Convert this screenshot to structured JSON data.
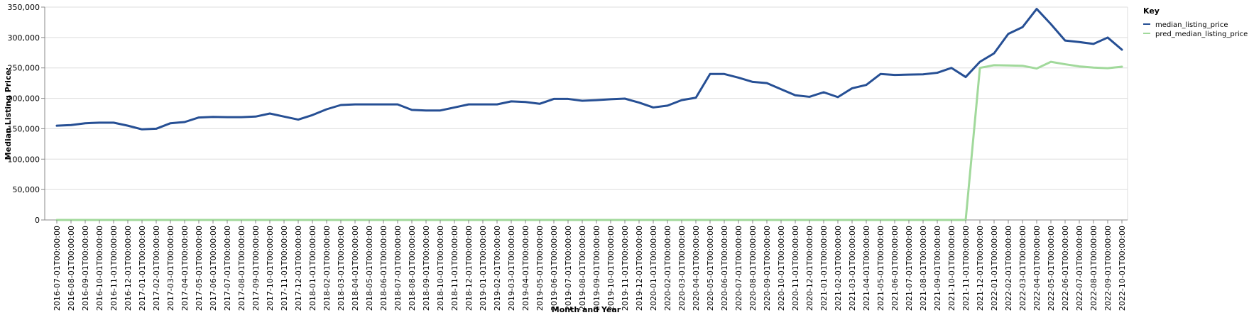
{
  "chart_data": {
    "type": "line",
    "xlabel": "Month and Year",
    "ylabel": "Median Listing Price:",
    "ylim": [
      0,
      350000
    ],
    "yticks": [
      "0",
      "50,000",
      "100,000",
      "150,000",
      "200,000",
      "250,000",
      "300,000",
      "350,000"
    ],
    "ytick_values": [
      0,
      50000,
      100000,
      150000,
      200000,
      250000,
      300000,
      350000
    ],
    "grid": true,
    "legend_title": "Key",
    "legend_position": "top-right",
    "x": [
      "2016-07-01T00:00:00",
      "2016-08-01T00:00:00",
      "2016-09-01T00:00:00",
      "2016-10-01T00:00:00",
      "2016-11-01T00:00:00",
      "2016-12-01T00:00:00",
      "2017-01-01T00:00:00",
      "2017-02-01T00:00:00",
      "2017-03-01T00:00:00",
      "2017-04-01T00:00:00",
      "2017-05-01T00:00:00",
      "2017-06-01T00:00:00",
      "2017-07-01T00:00:00",
      "2017-08-01T00:00:00",
      "2017-09-01T00:00:00",
      "2017-10-01T00:00:00",
      "2017-11-01T00:00:00",
      "2017-12-01T00:00:00",
      "2018-01-01T00:00:00",
      "2018-02-01T00:00:00",
      "2018-03-01T00:00:00",
      "2018-04-01T00:00:00",
      "2018-05-01T00:00:00",
      "2018-06-01T00:00:00",
      "2018-07-01T00:00:00",
      "2018-08-01T00:00:00",
      "2018-09-01T00:00:00",
      "2018-10-01T00:00:00",
      "2018-11-01T00:00:00",
      "2018-12-01T00:00:00",
      "2019-01-01T00:00:00",
      "2019-02-01T00:00:00",
      "2019-03-01T00:00:00",
      "2019-04-01T00:00:00",
      "2019-05-01T00:00:00",
      "2019-06-01T00:00:00",
      "2019-07-01T00:00:00",
      "2019-08-01T00:00:00",
      "2019-09-01T00:00:00",
      "2019-10-01T00:00:00",
      "2019-11-01T00:00:00",
      "2019-12-01T00:00:00",
      "2020-01-01T00:00:00",
      "2020-02-01T00:00:00",
      "2020-03-01T00:00:00",
      "2020-04-01T00:00:00",
      "2020-05-01T00:00:00",
      "2020-06-01T00:00:00",
      "2020-07-01T00:00:00",
      "2020-08-01T00:00:00",
      "2020-09-01T00:00:00",
      "2020-10-01T00:00:00",
      "2020-11-01T00:00:00",
      "2020-12-01T00:00:00",
      "2021-01-01T00:00:00",
      "2021-02-01T00:00:00",
      "2021-03-01T00:00:00",
      "2021-04-01T00:00:00",
      "2021-05-01T00:00:00",
      "2021-06-01T00:00:00",
      "2021-07-01T00:00:00",
      "2021-08-01T00:00:00",
      "2021-09-01T00:00:00",
      "2021-10-01T00:00:00",
      "2021-11-01T00:00:00",
      "2021-12-01T00:00:00",
      "2022-01-01T00:00:00",
      "2022-02-01T00:00:00",
      "2022-03-01T00:00:00",
      "2022-04-01T00:00:00",
      "2022-05-01T00:00:00",
      "2022-06-01T00:00:00",
      "2022-07-01T00:00:00",
      "2022-08-01T00:00:00",
      "2022-09-01T00:00:00",
      "2022-10-01T00:00:00"
    ],
    "series": [
      {
        "name": "median_listing_price",
        "color": "#264f94",
        "values": [
          155000,
          156000,
          159000,
          160000,
          160000,
          155000,
          149000,
          150000,
          159000,
          161000,
          168500,
          169500,
          169000,
          169000,
          170000,
          175000,
          170000,
          165000,
          172500,
          182000,
          189000,
          190000,
          190000,
          190000,
          190000,
          181000,
          180000,
          180000,
          185000,
          190000,
          190000,
          190000,
          195000,
          194000,
          191000,
          199000,
          199000,
          196000,
          197000,
          198500,
          199500,
          193000,
          185000,
          188000,
          197000,
          201000,
          240000,
          240000,
          234000,
          227000,
          225000,
          215000,
          205000,
          202500,
          210000,
          202000,
          216500,
          222000,
          240000,
          238500,
          239000,
          239500,
          242000,
          250000,
          235000,
          260000,
          274000,
          306000,
          317000,
          347000,
          322000,
          295000,
          292500,
          289500,
          299900,
          280000
        ]
      },
      {
        "name": "pred_median_listing_price",
        "color": "#a1d99b",
        "values": [
          0,
          0,
          0,
          0,
          0,
          0,
          0,
          0,
          0,
          0,
          0,
          0,
          0,
          0,
          0,
          0,
          0,
          0,
          0,
          0,
          0,
          0,
          0,
          0,
          0,
          0,
          0,
          0,
          0,
          0,
          0,
          0,
          0,
          0,
          0,
          0,
          0,
          0,
          0,
          0,
          0,
          0,
          0,
          0,
          0,
          0,
          0,
          0,
          0,
          0,
          0,
          0,
          0,
          0,
          0,
          0,
          0,
          0,
          0,
          0,
          0,
          0,
          0,
          0,
          0,
          250000,
          254500,
          254000,
          253500,
          249000,
          260000,
          256000,
          252500,
          250500,
          249500,
          252000
        ]
      }
    ]
  }
}
